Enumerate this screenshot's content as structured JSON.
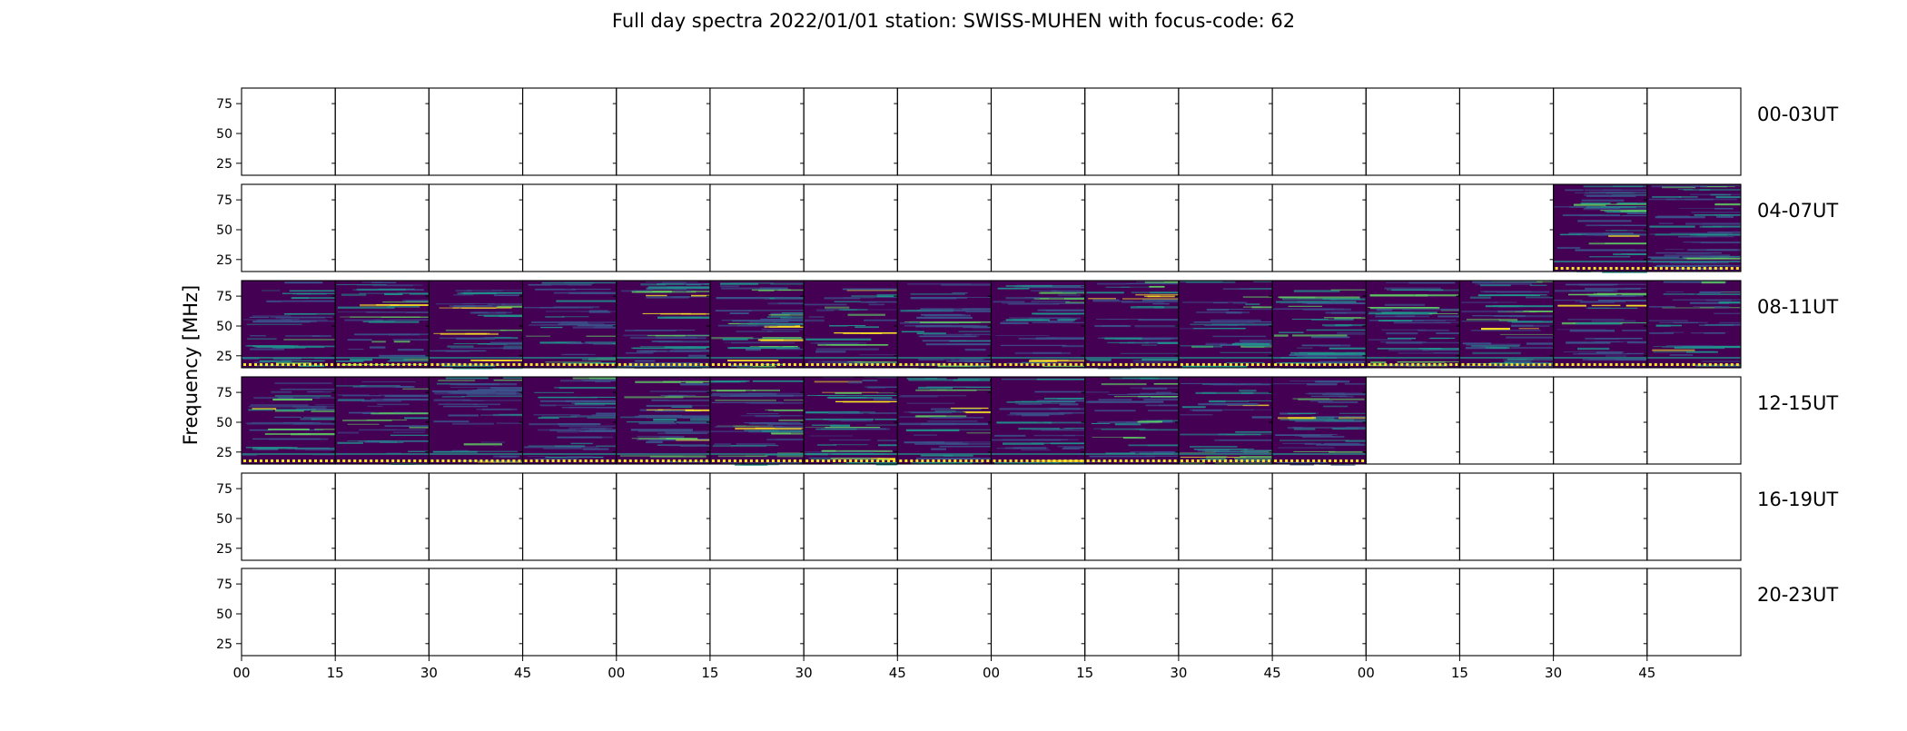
{
  "chart_data": {
    "type": "heatmap",
    "title": "Full day spectra 2022/01/01 station: SWISS-MUHEN with focus-code: 62",
    "ylabel": "Frequency [MHz]",
    "xlabel": "",
    "y_ticks": [
      "75",
      "50",
      "25"
    ],
    "x_ticks": [
      "00",
      "15",
      "30",
      "45",
      "00",
      "15",
      "30",
      "45",
      "00",
      "15",
      "30",
      "45",
      "00",
      "15",
      "30",
      "45"
    ],
    "ylim_mhz": [
      15,
      88
    ],
    "panels_per_row": 16,
    "panel_minutes": 15,
    "colormap": [
      "#440154",
      "#3b528b",
      "#21918c",
      "#5ec962",
      "#fde725"
    ],
    "rows": [
      {
        "label": "00-03UT",
        "panels_with_data": []
      },
      {
        "label": "04-07UT",
        "panels_with_data": [
          14,
          15
        ]
      },
      {
        "label": "08-11UT",
        "panels_with_data": [
          0,
          1,
          2,
          3,
          4,
          5,
          6,
          7,
          8,
          9,
          10,
          11,
          12,
          13,
          14,
          15
        ]
      },
      {
        "label": "12-15UT",
        "panels_with_data": [
          0,
          1,
          2,
          3,
          4,
          5,
          6,
          7,
          8,
          9,
          10,
          11
        ]
      },
      {
        "label": "16-19UT",
        "panels_with_data": []
      },
      {
        "label": "20-23UT",
        "panels_with_data": []
      }
    ]
  }
}
